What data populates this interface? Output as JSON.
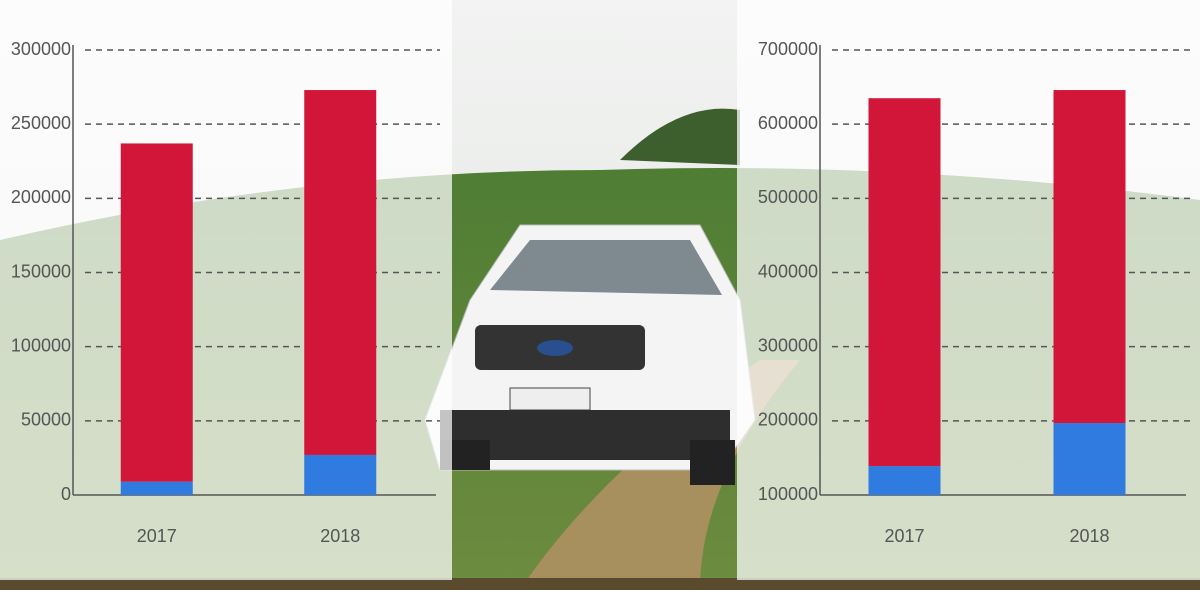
{
  "chart_data": [
    {
      "type": "bar",
      "categories": [
        "2017",
        "2018"
      ],
      "series": [
        {
          "color": "#2f7be0",
          "values": [
            9000,
            27000
          ]
        },
        {
          "color": "#d2163a",
          "values": [
            228000,
            246000
          ]
        }
      ],
      "ylim": [
        0,
        300000
      ],
      "yticks": [
        0,
        50000,
        100000,
        150000,
        200000,
        250000,
        300000
      ],
      "grid": true
    },
    {
      "type": "bar",
      "categories": [
        "2017",
        "2018"
      ],
      "series": [
        {
          "color": "#2f7be0",
          "values": [
            139000,
            197000
          ]
        },
        {
          "color": "#d2163a",
          "values": [
            496000,
            449000
          ]
        }
      ],
      "ylim": [
        100000,
        700000
      ],
      "yticks": [
        100000,
        200000,
        300000,
        400000,
        500000,
        600000,
        700000
      ],
      "grid": true
    }
  ]
}
